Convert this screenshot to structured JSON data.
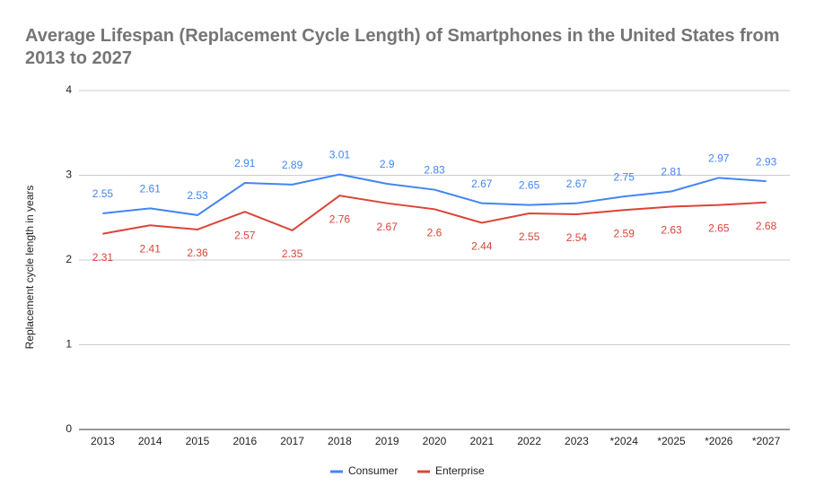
{
  "chart_data": {
    "type": "line",
    "title": "Average Lifespan (Replacement Cycle Length) of Smartphones in the United States from 2013 to 2027",
    "y_label": "Replacement cycle length in years",
    "categories": [
      "2013",
      "2014",
      "2015",
      "2016",
      "2017",
      "2018",
      "2019",
      "2020",
      "2021",
      "2022",
      "2023",
      "*2024",
      "*2025",
      "*2026",
      "*2027"
    ],
    "series": [
      {
        "name": "Consumer",
        "color": "#4285f4",
        "values": [
          2.55,
          2.61,
          2.53,
          2.91,
          2.89,
          3.01,
          2.9,
          2.83,
          2.67,
          2.65,
          2.67,
          2.75,
          2.81,
          2.97,
          2.93
        ]
      },
      {
        "name": "Enterprise",
        "color": "#db4437",
        "values": [
          2.31,
          2.41,
          2.36,
          2.57,
          2.35,
          2.76,
          2.67,
          2.6,
          2.44,
          2.55,
          2.54,
          2.59,
          2.63,
          2.65,
          2.68
        ]
      }
    ],
    "ylim": [
      0,
      4
    ],
    "yticks": [
      0,
      1,
      2,
      3,
      4
    ],
    "grid": true,
    "legend": "bottom"
  }
}
